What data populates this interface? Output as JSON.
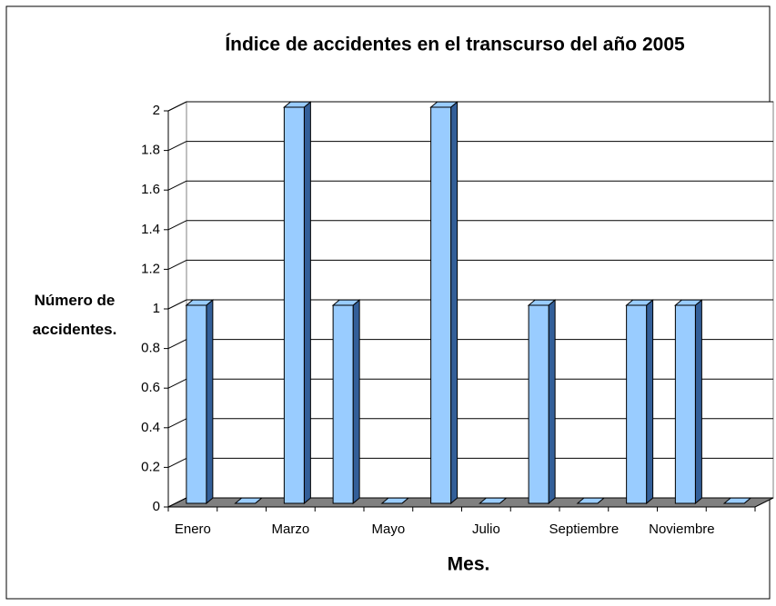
{
  "chart_data": {
    "type": "bar3d",
    "title": "Índice de accidentes en el transcurso del año 2005",
    "x_label": "Mes.",
    "y_label": "Número de accidentes.",
    "categories": [
      "Enero",
      null,
      "Marzo",
      null,
      "Mayo",
      null,
      "Julio",
      null,
      "Septiembre",
      null,
      "Noviembre",
      null
    ],
    "values": [
      1,
      0,
      2,
      1,
      0,
      2,
      0,
      1,
      0,
      1,
      1,
      0
    ],
    "color": "#99ccff",
    "ylim": [
      0,
      2
    ],
    "yticks": [
      0,
      0.2,
      0.4,
      0.6,
      0.8,
      1,
      1.2,
      1.4,
      1.6,
      1.8,
      2
    ],
    "grid": true
  }
}
